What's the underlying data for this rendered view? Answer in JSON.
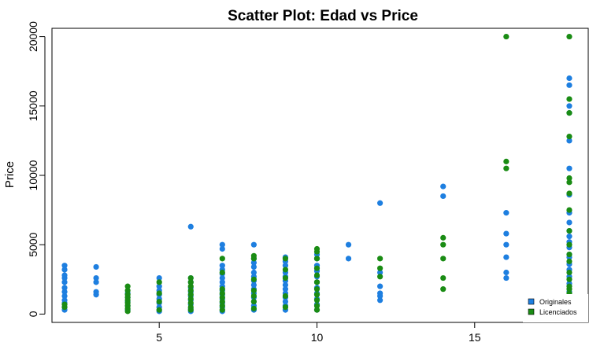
{
  "chart_data": {
    "type": "scatter",
    "title": "Scatter Plot: Edad vs Price",
    "xlabel": "",
    "ylabel": "Price",
    "xlim": [
      1.6,
      18.6
    ],
    "ylim": [
      -600,
      20600
    ],
    "x_ticks": [
      5,
      10,
      15
    ],
    "y_ticks": [
      0,
      5000,
      10000,
      15000,
      20000
    ],
    "legend_position": "bottom-right",
    "grid": false,
    "series": [
      {
        "name": "Originales",
        "color": "#1e7fe0",
        "points": [
          [
            2,
            300
          ],
          [
            2,
            500
          ],
          [
            2,
            800
          ],
          [
            2,
            1000
          ],
          [
            2,
            1300
          ],
          [
            2,
            1600
          ],
          [
            2,
            1900
          ],
          [
            2,
            2300
          ],
          [
            2,
            2600
          ],
          [
            2,
            2800
          ],
          [
            2,
            3200
          ],
          [
            2,
            3500
          ],
          [
            3,
            1400
          ],
          [
            3,
            1600
          ],
          [
            3,
            2300
          ],
          [
            3,
            2600
          ],
          [
            3,
            3400
          ],
          [
            4,
            300
          ],
          [
            4,
            600
          ],
          [
            4,
            900
          ],
          [
            4,
            1200
          ],
          [
            4,
            1500
          ],
          [
            5,
            200
          ],
          [
            5,
            500
          ],
          [
            5,
            800
          ],
          [
            5,
            1100
          ],
          [
            5,
            1400
          ],
          [
            5,
            1700
          ],
          [
            5,
            2000
          ],
          [
            5,
            2600
          ],
          [
            6,
            200
          ],
          [
            6,
            400
          ],
          [
            6,
            700
          ],
          [
            6,
            1000
          ],
          [
            6,
            1300
          ],
          [
            6,
            1600
          ],
          [
            6,
            1900
          ],
          [
            6,
            2300
          ],
          [
            6,
            2600
          ],
          [
            6,
            6300
          ],
          [
            7,
            200
          ],
          [
            7,
            500
          ],
          [
            7,
            800
          ],
          [
            7,
            1100
          ],
          [
            7,
            1400
          ],
          [
            7,
            1700
          ],
          [
            7,
            2000
          ],
          [
            7,
            2300
          ],
          [
            7,
            2600
          ],
          [
            7,
            2900
          ],
          [
            7,
            3200
          ],
          [
            7,
            3500
          ],
          [
            7,
            4700
          ],
          [
            7,
            5000
          ],
          [
            8,
            300
          ],
          [
            8,
            600
          ],
          [
            8,
            900
          ],
          [
            8,
            1200
          ],
          [
            8,
            1500
          ],
          [
            8,
            1800
          ],
          [
            8,
            2100
          ],
          [
            8,
            2400
          ],
          [
            8,
            2700
          ],
          [
            8,
            3000
          ],
          [
            8,
            3400
          ],
          [
            8,
            3700
          ],
          [
            8,
            4000
          ],
          [
            8,
            5000
          ],
          [
            9,
            300
          ],
          [
            9,
            600
          ],
          [
            9,
            900
          ],
          [
            9,
            1200
          ],
          [
            9,
            1500
          ],
          [
            9,
            1800
          ],
          [
            9,
            2100
          ],
          [
            9,
            2400
          ],
          [
            9,
            2700
          ],
          [
            9,
            3000
          ],
          [
            9,
            3500
          ],
          [
            9,
            3800
          ],
          [
            9,
            4100
          ],
          [
            10,
            300
          ],
          [
            10,
            700
          ],
          [
            10,
            1100
          ],
          [
            10,
            1500
          ],
          [
            10,
            1900
          ],
          [
            10,
            2300
          ],
          [
            10,
            2700
          ],
          [
            10,
            3100
          ],
          [
            10,
            3500
          ],
          [
            10,
            4000
          ],
          [
            10,
            4300
          ],
          [
            11,
            4000
          ],
          [
            11,
            5000
          ],
          [
            12,
            1000
          ],
          [
            12,
            1300
          ],
          [
            12,
            1500
          ],
          [
            12,
            2000
          ],
          [
            12,
            3000
          ],
          [
            12,
            8000
          ],
          [
            14,
            8500
          ],
          [
            14,
            9200
          ],
          [
            16,
            2600
          ],
          [
            16,
            3000
          ],
          [
            16,
            4100
          ],
          [
            16,
            5000
          ],
          [
            16,
            5800
          ],
          [
            16,
            7300
          ],
          [
            18,
            1600
          ],
          [
            18,
            2200
          ],
          [
            18,
            2700
          ],
          [
            18,
            3200
          ],
          [
            18,
            3600
          ],
          [
            18,
            4100
          ],
          [
            18,
            4300
          ],
          [
            18,
            4800
          ],
          [
            18,
            5200
          ],
          [
            18,
            5600
          ],
          [
            18,
            6000
          ],
          [
            18,
            6600
          ],
          [
            18,
            7300
          ],
          [
            18,
            8600
          ],
          [
            18,
            10500
          ],
          [
            18,
            12500
          ],
          [
            18,
            14500
          ],
          [
            18,
            15000
          ],
          [
            18,
            16500
          ],
          [
            18,
            17000
          ]
        ]
      },
      {
        "name": "Licenciados",
        "color": "#1a8c14",
        "points": [
          [
            2,
            500
          ],
          [
            2,
            700
          ],
          [
            4,
            200
          ],
          [
            4,
            400
          ],
          [
            4,
            600
          ],
          [
            4,
            800
          ],
          [
            4,
            1000
          ],
          [
            4,
            1200
          ],
          [
            4,
            1400
          ],
          [
            4,
            1700
          ],
          [
            4,
            2000
          ],
          [
            5,
            300
          ],
          [
            5,
            900
          ],
          [
            5,
            1500
          ],
          [
            5,
            2300
          ],
          [
            6,
            300
          ],
          [
            6,
            500
          ],
          [
            6,
            800
          ],
          [
            6,
            1100
          ],
          [
            6,
            1400
          ],
          [
            6,
            1700
          ],
          [
            6,
            2000
          ],
          [
            6,
            2300
          ],
          [
            6,
            2600
          ],
          [
            7,
            300
          ],
          [
            7,
            600
          ],
          [
            7,
            900
          ],
          [
            7,
            1200
          ],
          [
            7,
            1500
          ],
          [
            7,
            1800
          ],
          [
            7,
            3000
          ],
          [
            7,
            4000
          ],
          [
            8,
            400
          ],
          [
            8,
            900
          ],
          [
            8,
            1300
          ],
          [
            8,
            1700
          ],
          [
            8,
            2500
          ],
          [
            8,
            4000
          ],
          [
            8,
            4200
          ],
          [
            9,
            500
          ],
          [
            9,
            1300
          ],
          [
            9,
            2600
          ],
          [
            9,
            3200
          ],
          [
            9,
            4000
          ],
          [
            10,
            300
          ],
          [
            10,
            600
          ],
          [
            10,
            1000
          ],
          [
            10,
            1400
          ],
          [
            10,
            1800
          ],
          [
            10,
            2300
          ],
          [
            10,
            2800
          ],
          [
            10,
            3300
          ],
          [
            10,
            4000
          ],
          [
            10,
            4500
          ],
          [
            10,
            4700
          ],
          [
            12,
            2700
          ],
          [
            12,
            3300
          ],
          [
            12,
            4000
          ],
          [
            14,
            1800
          ],
          [
            14,
            2600
          ],
          [
            14,
            4000
          ],
          [
            14,
            5000
          ],
          [
            14,
            5500
          ],
          [
            16,
            10500
          ],
          [
            16,
            11000
          ],
          [
            16,
            20000
          ],
          [
            18,
            1500
          ],
          [
            18,
            1800
          ],
          [
            18,
            2000
          ],
          [
            18,
            2500
          ],
          [
            18,
            3000
          ],
          [
            18,
            3800
          ],
          [
            18,
            4300
          ],
          [
            18,
            5000
          ],
          [
            18,
            6000
          ],
          [
            18,
            7500
          ],
          [
            18,
            8700
          ],
          [
            18,
            9500
          ],
          [
            18,
            9800
          ],
          [
            18,
            12800
          ],
          [
            18,
            14500
          ],
          [
            18,
            15500
          ],
          [
            18,
            20000
          ]
        ]
      }
    ]
  }
}
